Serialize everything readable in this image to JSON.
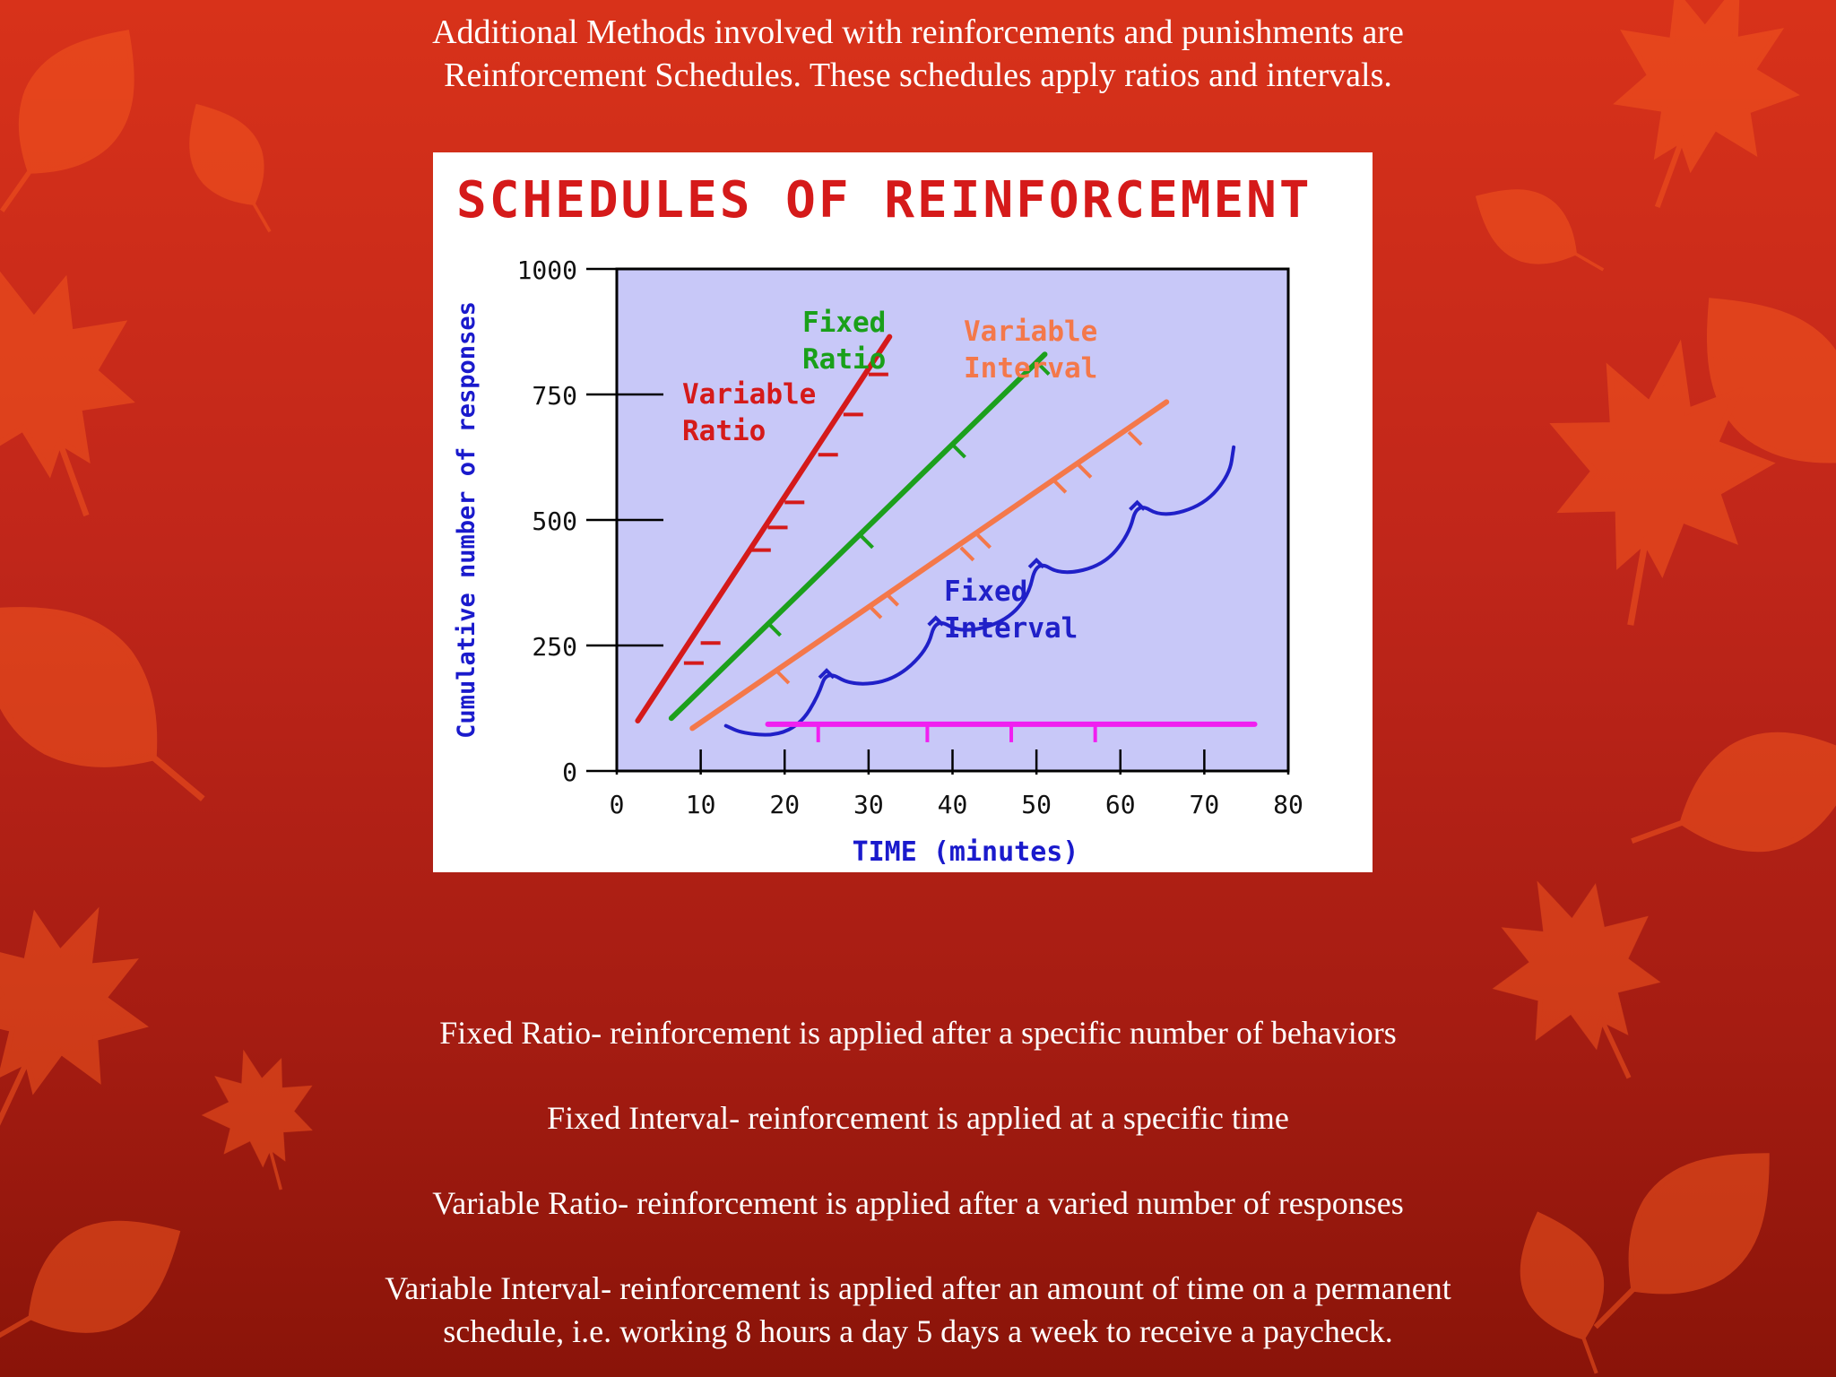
{
  "slide": {
    "intro": {
      "line1": "Additional Methods involved with reinforcements and punishments are",
      "line2": "Reinforcement Schedules. These schedules apply ratios and intervals."
    },
    "definitions": [
      {
        "line1": "Fixed Ratio- reinforcement is applied after a specific number of behaviors"
      },
      {
        "line1": "Fixed Interval- reinforcement is applied at a specific time"
      },
      {
        "line1": "Variable Ratio- reinforcement is applied after a varied number of responses"
      },
      {
        "line1": "Variable Interval- reinforcement is applied after an amount of time on a permanent",
        "line2": "schedule, i.e. working 8 hours a day 5 days a week to receive a paycheck."
      }
    ],
    "colors": {
      "background_top": "#d8321a",
      "background_bottom": "#8a1409",
      "leaf": "#f2561f",
      "text": "#ffffff"
    }
  },
  "chart_data": {
    "type": "line",
    "title": "SCHEDULES OF REINFORCEMENT",
    "xlabel": "TIME (minutes)",
    "ylabel": "Cumulative number of responses",
    "xlim": [
      0,
      80
    ],
    "ylim": [
      0,
      1000
    ],
    "x_ticks": [
      0,
      10,
      20,
      30,
      40,
      50,
      60,
      70,
      80
    ],
    "x_tick_labels": [
      "0",
      "10",
      "20",
      "30",
      "40",
      "50",
      "60",
      "70",
      "80"
    ],
    "y_ticks": [
      0,
      250,
      500,
      750,
      1000
    ],
    "y_tick_labels": [
      "0",
      "250",
      "500",
      "750",
      "1000"
    ],
    "plot_background": "#c8c8f8",
    "series": [
      {
        "name": "Variable Ratio",
        "label_lines": [
          "Variable",
          "Ratio"
        ],
        "color": "#d51a1a",
        "points": [
          [
            2.5,
            100
          ],
          [
            32.5,
            865
          ]
        ],
        "reinforcements": [
          [
            8,
            215
          ],
          [
            10,
            255
          ],
          [
            16,
            440
          ],
          [
            18,
            485
          ],
          [
            20,
            535
          ],
          [
            24,
            630
          ],
          [
            27,
            710
          ],
          [
            30,
            790
          ]
        ]
      },
      {
        "name": "Fixed Ratio",
        "label_lines": [
          "Fixed",
          "Ratio"
        ],
        "color": "#1ca01c",
        "points": [
          [
            6.5,
            105
          ],
          [
            51,
            830
          ]
        ],
        "reinforcements": [
          [
            18,
            295
          ],
          [
            29,
            470
          ],
          [
            40,
            650
          ],
          [
            50,
            815
          ]
        ]
      },
      {
        "name": "Variable Interval",
        "label_lines": [
          "Variable",
          "Interval"
        ],
        "color": "#f4784a",
        "points": [
          [
            9,
            85
          ],
          [
            65.5,
            735
          ]
        ],
        "reinforcements": [
          [
            19,
            200
          ],
          [
            30,
            330
          ],
          [
            32,
            355
          ],
          [
            41,
            445
          ],
          [
            43,
            470
          ],
          [
            52,
            580
          ],
          [
            55,
            610
          ],
          [
            61,
            675
          ]
        ]
      },
      {
        "name": "Fixed Interval",
        "label_lines": [
          "Fixed",
          "Interval"
        ],
        "color": "#2020c8",
        "points": [
          [
            13,
            90
          ],
          [
            15,
            75
          ],
          [
            19,
            70
          ],
          [
            22,
            95
          ],
          [
            24,
            150
          ],
          [
            25,
            200
          ],
          [
            28,
            170
          ],
          [
            33,
            180
          ],
          [
            37,
            240
          ],
          [
            38,
            305
          ],
          [
            41,
            275
          ],
          [
            46,
            295
          ],
          [
            49,
            345
          ],
          [
            50,
            420
          ],
          [
            53,
            390
          ],
          [
            58,
            410
          ],
          [
            61,
            470
          ],
          [
            62,
            535
          ],
          [
            65,
            505
          ],
          [
            70,
            530
          ],
          [
            73,
            590
          ],
          [
            73.5,
            645
          ]
        ],
        "reinforcements": [
          [
            25,
            200
          ],
          [
            38,
            305
          ],
          [
            50,
            420
          ],
          [
            62,
            535
          ]
        ]
      },
      {
        "name": "Fixed Interval baseline",
        "color": "#f020f0",
        "points": [
          [
            18,
            93
          ],
          [
            76,
            93
          ]
        ],
        "reinforcements": [
          [
            24,
            93
          ],
          [
            37,
            93
          ],
          [
            47,
            93
          ],
          [
            57,
            93
          ]
        ]
      }
    ]
  }
}
